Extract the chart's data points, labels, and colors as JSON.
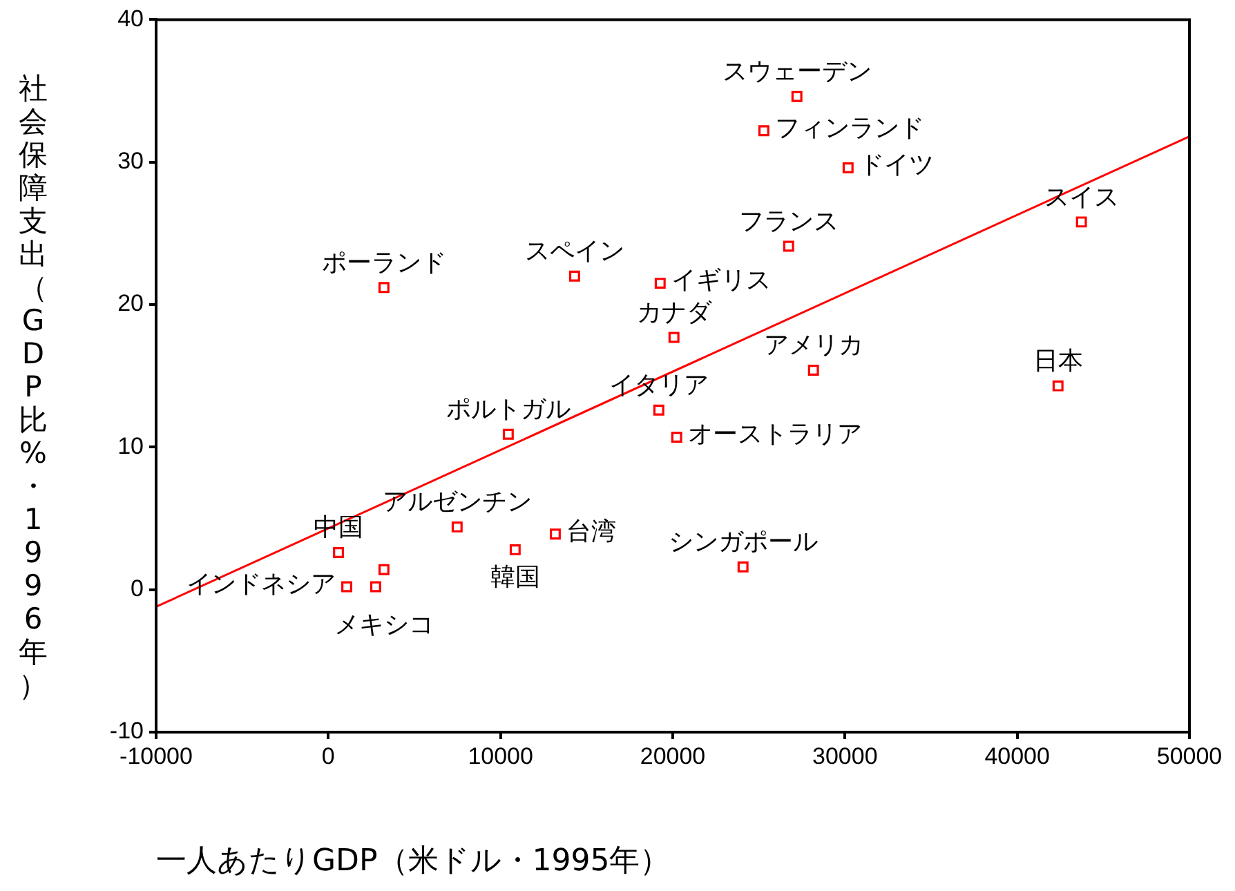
{
  "chart_data": {
    "type": "scatter",
    "xlabel": "一人あたりGDP（米ドル・1995年）",
    "ylabel": "社会保障支出（GDP比%・1996年）",
    "xlim": [
      -10000,
      50000
    ],
    "xticks": [
      -10000,
      0,
      10000,
      20000,
      30000,
      40000,
      50000
    ],
    "ylim": [
      -10,
      40
    ],
    "yticks": [
      -10,
      0,
      10,
      20,
      30,
      40
    ],
    "grid": false,
    "legend": false,
    "marker": "square",
    "series": [
      {
        "type": "scatter",
        "color": "#ff0000",
        "x": [
          3230,
          14300,
          19270,
          20070,
          26730,
          27210,
          25290,
          30180,
          43730,
          28170,
          42370,
          19190,
          20230,
          10450,
          7480,
          13180,
          10850,
          24080,
          590,
          3230,
          1070,
          2750
        ],
        "values": [
          21.2,
          22.0,
          21.5,
          17.7,
          24.1,
          34.6,
          32.2,
          29.6,
          25.8,
          15.4,
          14.3,
          12.6,
          10.7,
          10.9,
          4.4,
          3.9,
          2.8,
          1.6,
          2.6,
          1.4,
          0.2,
          0.2
        ]
      },
      {
        "type": "line",
        "color": "#ff0000",
        "marker": "none",
        "x": [
          -10000,
          50000
        ],
        "values": [
          -1.2,
          31.8
        ]
      }
    ],
    "annotations": [
      {
        "text": "ポーランド",
        "x": 3230,
        "y": 21.2
      },
      {
        "text": "スペイン",
        "x": 14300,
        "y": 22.0
      },
      {
        "text": "イギリス",
        "x": 19270,
        "y": 21.5
      },
      {
        "text": "カナダ",
        "x": 20070,
        "y": 17.7
      },
      {
        "text": "フランス",
        "x": 26730,
        "y": 24.1
      },
      {
        "text": "スウェーデン",
        "x": 27210,
        "y": 34.6
      },
      {
        "text": "フィンランド",
        "x": 25290,
        "y": 32.2
      },
      {
        "text": "ドイツ",
        "x": 30180,
        "y": 29.6
      },
      {
        "text": "スイス",
        "x": 43730,
        "y": 25.8
      },
      {
        "text": "アメリカ",
        "x": 28170,
        "y": 15.4
      },
      {
        "text": "日本",
        "x": 42370,
        "y": 14.3
      },
      {
        "text": "イタリア",
        "x": 19190,
        "y": 12.6
      },
      {
        "text": "オーストラリア",
        "x": 20230,
        "y": 10.7
      },
      {
        "text": "ポルトガル",
        "x": 10450,
        "y": 10.9
      },
      {
        "text": "アルゼンチン",
        "x": 7480,
        "y": 4.4
      },
      {
        "text": "台湾",
        "x": 13180,
        "y": 3.9
      },
      {
        "text": "韓国",
        "x": 10850,
        "y": 2.8
      },
      {
        "text": "シンガポール",
        "x": 24080,
        "y": 1.6
      },
      {
        "text": "中国",
        "x": 590,
        "y": 2.6
      },
      {
        "text": "メキシコ",
        "x": 3230,
        "y": 1.4
      },
      {
        "text": "インドネシア",
        "x": 1070,
        "y": 0.2
      }
    ]
  }
}
